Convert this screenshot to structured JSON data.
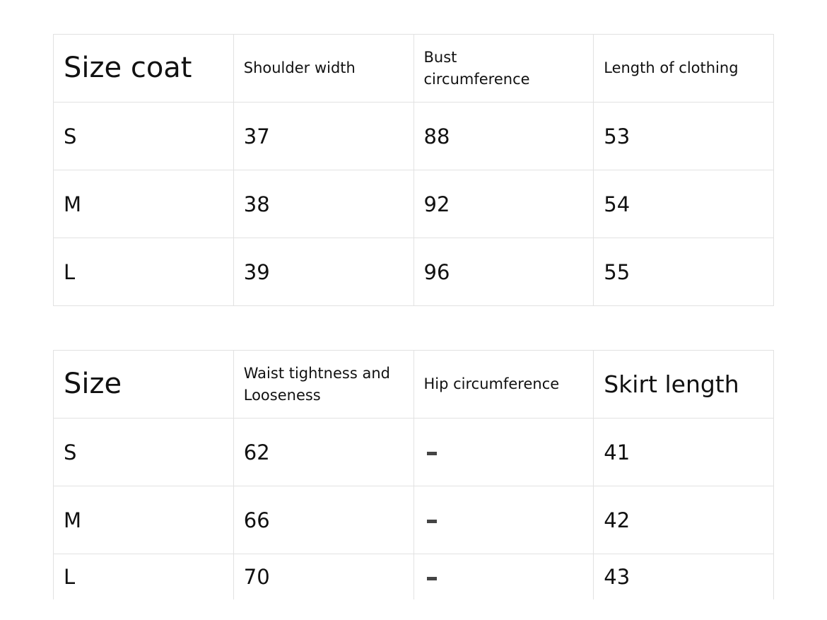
{
  "coat_table": {
    "headers": [
      "Size coat",
      "Shoulder width",
      "Bust circumference",
      "Length of clothing"
    ],
    "rows": [
      [
        "S",
        "37",
        "88",
        "53"
      ],
      [
        "M",
        "38",
        "92",
        "54"
      ],
      [
        "L",
        "39",
        "96",
        "55"
      ]
    ]
  },
  "skirt_table": {
    "headers": [
      "Size",
      "Waist tightness and Looseness",
      "Hip circumference",
      "Skirt length"
    ],
    "rows": [
      [
        "S",
        "62",
        "-",
        "41"
      ],
      [
        "M",
        "66",
        "-",
        "42"
      ],
      [
        "L",
        "70",
        "-",
        "43"
      ]
    ]
  }
}
